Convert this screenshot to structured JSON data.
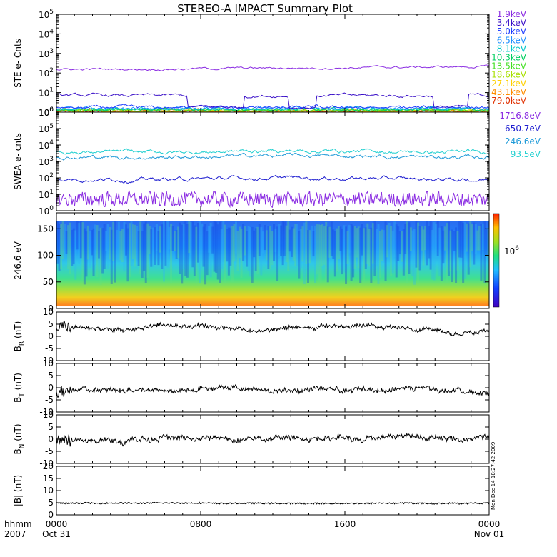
{
  "title": "STEREO-A IMPACT Summary Plot",
  "timestamp": "Mon Dec 14 18:27:42 2009",
  "xaxis": {
    "caption_line1": "hhmm",
    "caption_line2": "2007",
    "ticks": [
      {
        "line1": "0000",
        "line2": "Oct 31"
      },
      {
        "line1": "0800",
        "line2": ""
      },
      {
        "line1": "1600",
        "line2": ""
      },
      {
        "line1": "0000",
        "line2": "Nov 01"
      }
    ]
  },
  "chart_data": [
    {
      "type": "line",
      "panel": "ste",
      "ylabel": "STE e- Cnts",
      "yscale": "log",
      "ylim": [
        1,
        100000
      ],
      "ytick_labels": [
        {
          "base": "10",
          "exp": "0"
        },
        {
          "base": "10",
          "exp": "1"
        },
        {
          "base": "10",
          "exp": "2"
        },
        {
          "base": "10",
          "exp": "3"
        },
        {
          "base": "10",
          "exp": "4"
        },
        {
          "base": "10",
          "exp": "5"
        }
      ],
      "series": [
        {
          "name": "1.9keV",
          "color": "#8a2be2",
          "level": 150
        },
        {
          "name": "3.4keV",
          "color": "#3a10c8",
          "level": 7
        },
        {
          "name": "5.0keV",
          "color": "#1e3cff",
          "level": 1.6
        },
        {
          "name": "6.5keV",
          "color": "#1e90ff",
          "level": 1.4
        },
        {
          "name": "8.1keV",
          "color": "#00c8c8",
          "level": 1.3
        },
        {
          "name": "10.3keV",
          "color": "#00d060",
          "level": 1.2
        },
        {
          "name": "13.5keV",
          "color": "#40e020",
          "level": 1.1
        },
        {
          "name": "18.6keV",
          "color": "#a8e000",
          "level": 1.05
        },
        {
          "name": "27.1keV",
          "color": "#ffd000",
          "level": 1.0
        },
        {
          "name": "43.1keV",
          "color": "#ff8c00",
          "level": 1.0
        },
        {
          "name": "79.0keV",
          "color": "#e03000",
          "level": 1.0
        }
      ]
    },
    {
      "type": "line",
      "panel": "swea",
      "ylabel": "SWEA e- cnts",
      "yscale": "log",
      "ylim": [
        1,
        1000000
      ],
      "ytick_labels": [
        {
          "base": "10",
          "exp": "0"
        },
        {
          "base": "10",
          "exp": "1"
        },
        {
          "base": "10",
          "exp": "2"
        },
        {
          "base": "10",
          "exp": "3"
        },
        {
          "base": "10",
          "exp": "4"
        },
        {
          "base": "10",
          "exp": "5"
        },
        {
          "base": "10",
          "exp": "6"
        }
      ],
      "series": [
        {
          "name": "1716.8eV",
          "color": "#8a2be2",
          "level": 5
        },
        {
          "name": "650.7eV",
          "color": "#1e1ed0",
          "level": 90
        },
        {
          "name": "246.6eV",
          "color": "#1e9ad8",
          "level": 2000
        },
        {
          "name": "93.5eV",
          "color": "#20d0d0",
          "level": 4000
        }
      ]
    },
    {
      "type": "heatmap",
      "panel": "pad",
      "ylabel": "246.6 eV",
      "ylim": [
        0,
        180
      ],
      "yticks": [
        0,
        50,
        100,
        150
      ],
      "colorbar_label": {
        "base": "10",
        "exp": "6"
      }
    },
    {
      "type": "line",
      "panel": "br",
      "ylabel": {
        "main": "B",
        "sub": "R",
        "unit": " (nT)"
      },
      "ylim": [
        -10,
        10
      ],
      "yticks": [
        -10,
        -5,
        0,
        5,
        10
      ],
      "series": [
        {
          "color": "#000000",
          "mean": 3.5,
          "amp": 1.8
        }
      ]
    },
    {
      "type": "line",
      "panel": "bt",
      "ylabel": {
        "main": "B",
        "sub": "T",
        "unit": " (nT)"
      },
      "ylim": [
        -10,
        10
      ],
      "yticks": [
        -10,
        -5,
        0,
        5,
        10
      ],
      "series": [
        {
          "color": "#000000",
          "mean": -1.5,
          "amp": 2.0
        }
      ]
    },
    {
      "type": "line",
      "panel": "bn",
      "ylabel": {
        "main": "B",
        "sub": "N",
        "unit": " (nT)"
      },
      "ylim": [
        -10,
        10
      ],
      "yticks": [
        -10,
        -5,
        0,
        5,
        10
      ],
      "series": [
        {
          "color": "#000000",
          "mean": 0.3,
          "amp": 2.2
        }
      ]
    },
    {
      "type": "line",
      "panel": "bmag",
      "ylabel": "|B| (nT)",
      "ylim": [
        0,
        20
      ],
      "yticks": [
        0,
        5,
        10,
        15,
        20
      ],
      "series": [
        {
          "color": "#000000",
          "mean": 4.8,
          "amp": 0.6
        }
      ]
    }
  ]
}
